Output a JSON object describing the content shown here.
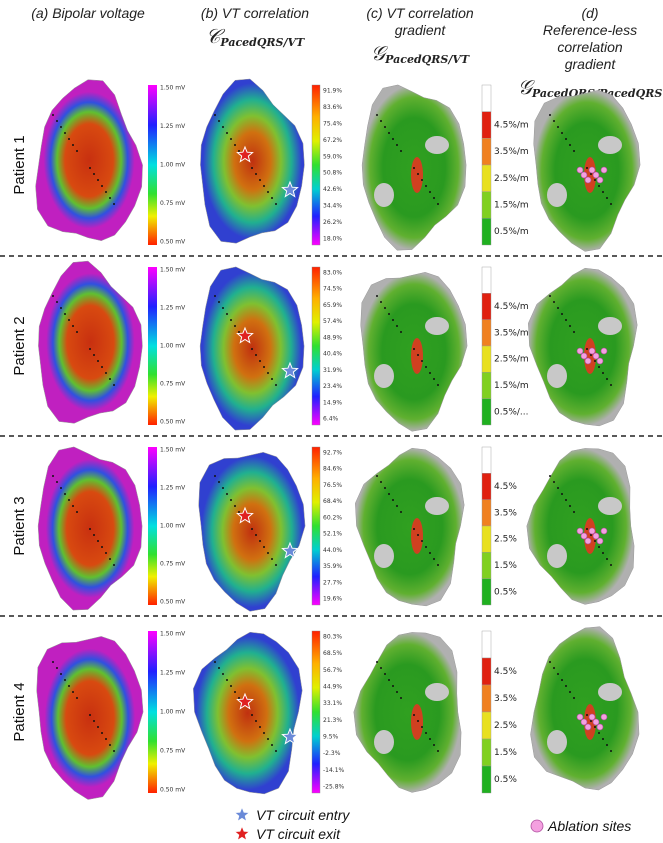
{
  "columns": [
    {
      "title": "(a) Bipolar voltage"
    },
    {
      "title": "(b) VT correlation",
      "symbol": "𝒞",
      "subscript": "PacedQRS/VT"
    },
    {
      "title": "(c) VT correlation gradient",
      "symbol": "𝒢",
      "subscript": "PacedQRS/VT"
    },
    {
      "title": "(d) Reference-less correlation gradient",
      "symbol": "𝒢",
      "subscript": "PacedQRS/PacedQRS"
    }
  ],
  "patients": [
    {
      "label": "Patient 1",
      "voltage_scale": [
        "1.50 mV",
        "1.25 mV",
        "1.00 mV",
        "0.75 mV",
        "0.50 mV"
      ],
      "correlation_scale": [
        "91.9%",
        "83.6%",
        "75.4%",
        "67.2%",
        "59.0%",
        "50.8%",
        "42.6%",
        "34.4%",
        "26.2%",
        "18.0%"
      ],
      "gradient_scale": [
        "4.5%/m",
        "3.5%/m",
        "2.5%/m",
        "1.5%/m",
        "0.5%/m"
      ]
    },
    {
      "label": "Patient 2",
      "voltage_scale": [
        "1.50 mV",
        "1.25 mV",
        "1.00 mV",
        "0.75 mV",
        "0.50 mV"
      ],
      "correlation_scale": [
        "83.0%",
        "74.5%",
        "65.9%",
        "57.4%",
        "48.9%",
        "40.4%",
        "31.9%",
        "23.4%",
        "14.9%",
        "6.4%"
      ],
      "gradient_scale": [
        "4.5%/m",
        "3.5%/m",
        "2.5%/m",
        "1.5%/m",
        "0.5%/..."
      ]
    },
    {
      "label": "Patient 3",
      "voltage_scale": [
        "1.50 mV",
        "1.25 mV",
        "1.00 mV",
        "0.75 mV",
        "0.50 mV"
      ],
      "correlation_scale": [
        "92.7%",
        "84.6%",
        "76.5%",
        "68.4%",
        "60.2%",
        "52.1%",
        "44.0%",
        "35.9%",
        "27.7%",
        "19.6%"
      ],
      "gradient_scale": [
        "4.5%",
        "3.5%",
        "2.5%",
        "1.5%",
        "0.5%"
      ]
    },
    {
      "label": "Patient 4",
      "voltage_scale": [
        "1.50 mV",
        "1.25 mV",
        "1.00 mV",
        "0.75 mV",
        "0.50 mV"
      ],
      "correlation_scale": [
        "80.3%",
        "68.5%",
        "56.7%",
        "44.9%",
        "33.1%",
        "21.3%",
        "9.5%",
        "-2.3%",
        "-14.1%",
        "-25.8%"
      ],
      "gradient_scale": [
        "4.5%",
        "3.5%",
        "2.5%",
        "1.5%",
        "0.5%"
      ]
    }
  ],
  "legend": {
    "entry": "VT circuit entry",
    "exit": "VT circuit exit",
    "ablation": "Ablation sites"
  }
}
